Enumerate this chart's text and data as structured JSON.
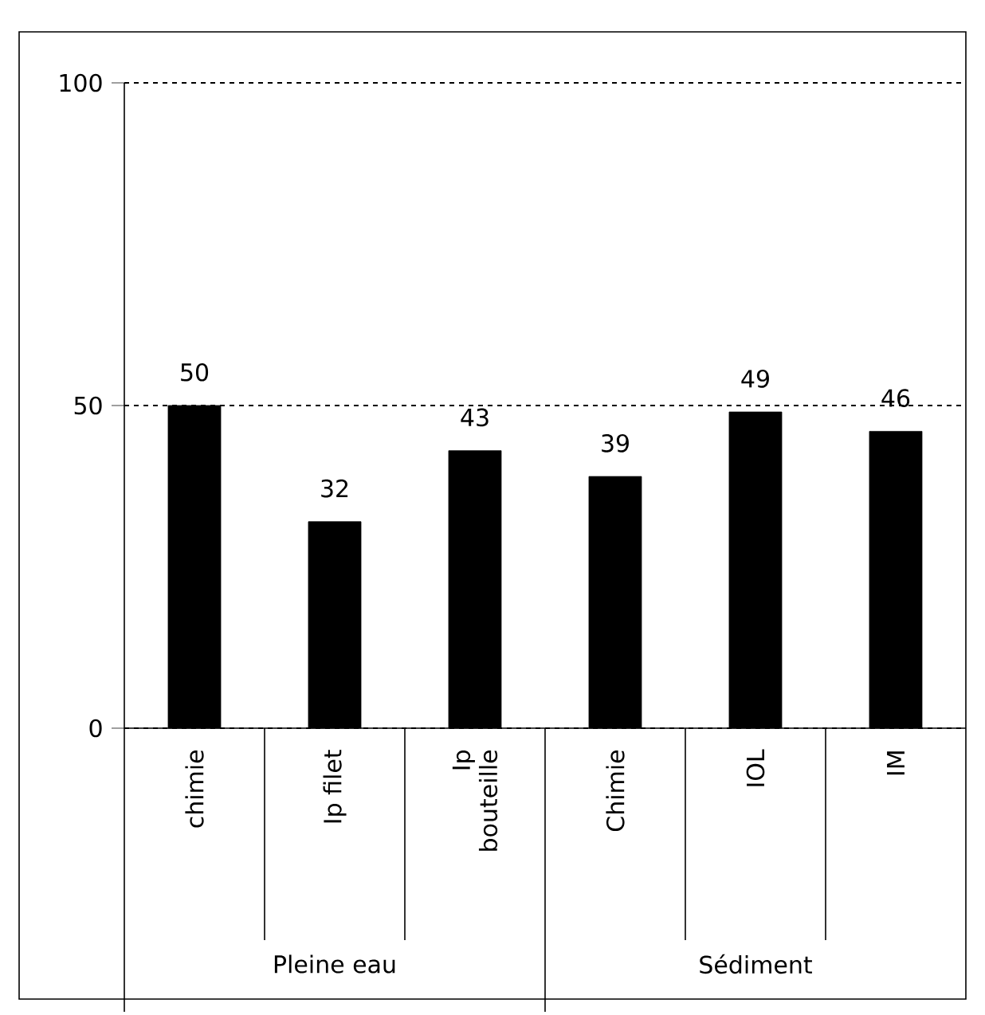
{
  "chart_data": {
    "type": "bar",
    "categories": [
      "chimie",
      "Ip filet",
      "Ip bouteille",
      "Chimie",
      "IOL",
      "IM"
    ],
    "values": [
      50,
      32,
      43,
      39,
      49,
      46
    ],
    "color": "#000000",
    "ylim": [
      0,
      100
    ],
    "yticks": [
      0,
      50,
      100
    ],
    "grid": "y",
    "data_labels": true,
    "annotations": [
      "Pleine eau",
      "Sédiment"
    ]
  }
}
